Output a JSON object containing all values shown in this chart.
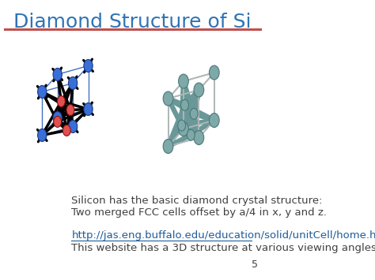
{
  "title": "Diamond Structure of Si",
  "title_color": "#2E74B5",
  "title_fontsize": 18,
  "bg_color": "#FFFFFF",
  "separator_color": "#C0504D",
  "body_text_line1": "Silicon has the basic diamond crystal structure:",
  "body_text_line2": "Two merged FCC cells offset by a/4 in x, y and z.",
  "body_text_color": "#404040",
  "body_text_fontsize": 9.5,
  "url_text": "http://jas.eng.buffalo.edu/education/solid/unitCell/home.html",
  "url_color": "#1F5C99",
  "url_fontsize": 9.5,
  "website_text": "This website has a 3D structure at various viewing angles.",
  "website_text_color": "#404040",
  "website_text_fontsize": 9.5,
  "page_number": "5",
  "page_number_color": "#404040",
  "page_number_fontsize": 9,
  "atom_blue": "#3A6FD8",
  "atom_red": "#E05050",
  "atom_teal": "#7FA8A8",
  "bond_teal": "#6A9898",
  "cube_blue": "#4472C4",
  "cube_gray": "#B0B8B8"
}
